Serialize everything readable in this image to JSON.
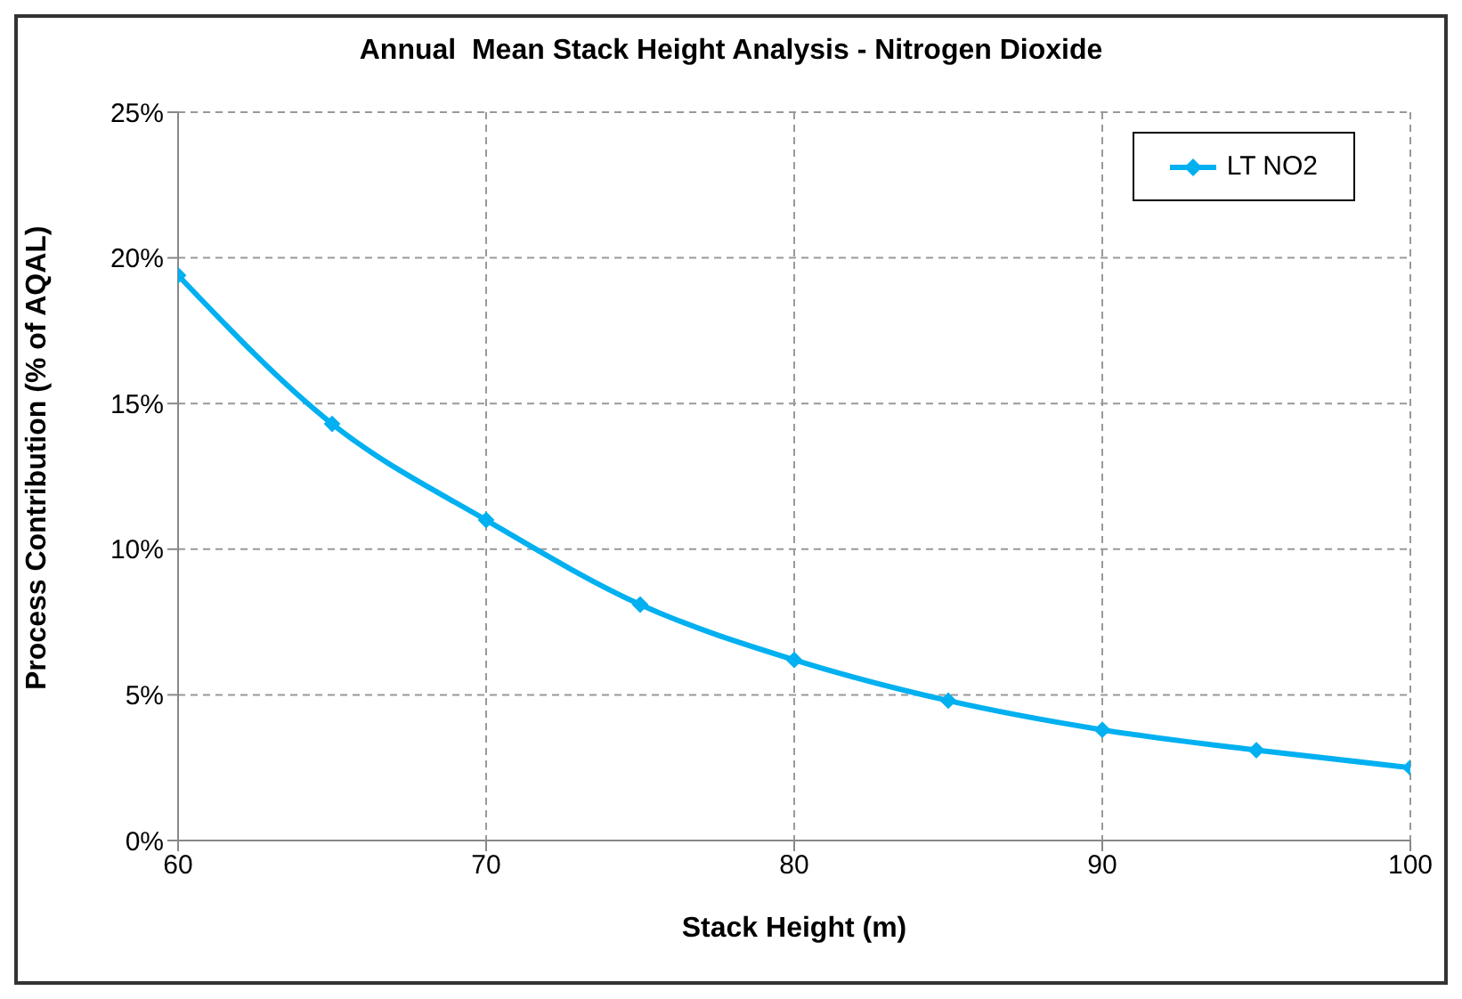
{
  "chart_data": {
    "type": "line",
    "title": "Annual  Mean Stack Height Analysis - Nitrogen Dioxide",
    "xlabel": "Stack Height (m)",
    "ylabel": "Process Contribution (% of AQAL)",
    "x": [
      60,
      65,
      70,
      75,
      80,
      85,
      90,
      95,
      100
    ],
    "series": [
      {
        "name": "LT NO2",
        "color": "#00b0f0",
        "values": [
          19.4,
          14.3,
          11.0,
          8.1,
          6.2,
          4.8,
          3.8,
          3.1,
          2.5
        ]
      }
    ],
    "xlim": [
      60,
      100
    ],
    "xticks": [
      60,
      70,
      80,
      90,
      100
    ],
    "ylim": [
      0,
      25
    ],
    "yticks": [
      {
        "value": 0,
        "label": "0%"
      },
      {
        "value": 5,
        "label": "5%"
      },
      {
        "value": 10,
        "label": "10%"
      },
      {
        "value": 15,
        "label": "15%"
      },
      {
        "value": 20,
        "label": "20%"
      },
      {
        "value": 25,
        "label": "25%"
      }
    ],
    "grid": true,
    "legend": "top right",
    "marker": "diamond",
    "line_style": "solid"
  }
}
